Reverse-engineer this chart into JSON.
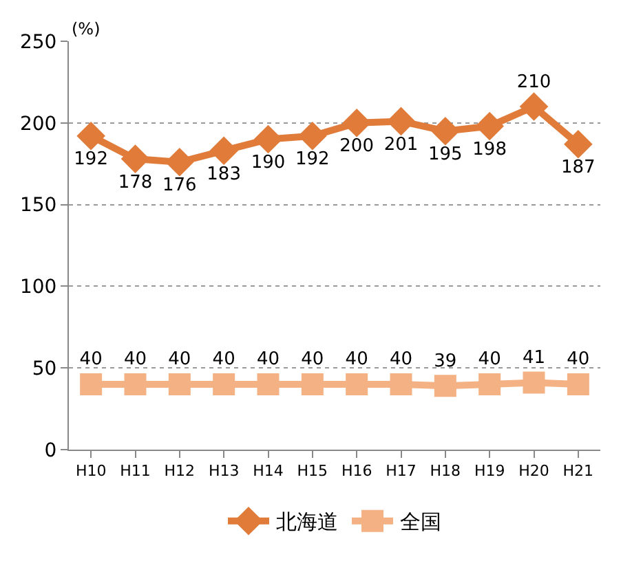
{
  "chart_data": {
    "type": "line",
    "ylabel": "(%)",
    "categories": [
      "H10",
      "H11",
      "H12",
      "H13",
      "H14",
      "H15",
      "H16",
      "H17",
      "H18",
      "H19",
      "H20",
      "H21"
    ],
    "series": [
      {
        "name": "北海道",
        "color": "#e07b39",
        "marker": "diamond",
        "values": [
          192,
          178,
          176,
          183,
          190,
          192,
          200,
          201,
          195,
          198,
          210,
          187
        ]
      },
      {
        "name": "全国",
        "color": "#f4b183",
        "marker": "square",
        "values": [
          40,
          40,
          40,
          40,
          40,
          40,
          40,
          40,
          39,
          40,
          41,
          40
        ]
      }
    ],
    "ylim": [
      0,
      250
    ],
    "yticks": [
      0,
      50,
      100,
      150,
      200,
      250
    ],
    "grid": "y",
    "legend": "bottom",
    "data_labels": true,
    "line_style": "solid"
  }
}
